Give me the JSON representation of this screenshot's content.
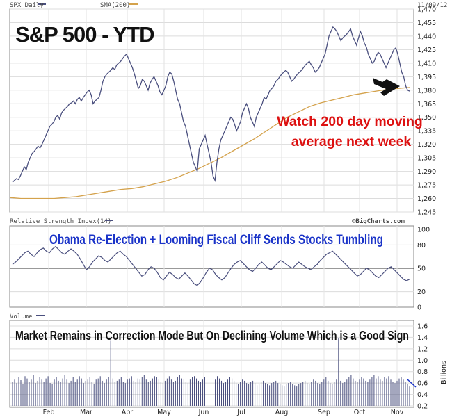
{
  "header": {
    "price_label": "SPX Daily",
    "sma_label": "SMA(200)",
    "date": "11/09/12"
  },
  "annotations": {
    "title": "S&P 500 - YTD",
    "watch_line1": "Watch 200 day moving",
    "watch_line2": "average next week",
    "rsi_headline": "Obama Re-Election + Looming Fiscal Cliff Sends Stocks Tumbling",
    "volume_headline": "Market Remains in Correction Mode But On Declining Volume Which is a Good Sign",
    "bigcharts": "©BigCharts.com"
  },
  "rsi_panel": {
    "label": "Relative Strength Index(14)"
  },
  "volume_panel": {
    "label": "Volume",
    "unit": "Billions"
  },
  "colors": {
    "price": "#4a4f7e",
    "sma": "#d4a24c",
    "annotation_red": "#dd1111",
    "headline_blue": "#1a33c8",
    "grid": "#d8d8d8",
    "border": "#888888",
    "arrow": "#111111"
  },
  "chart_data": [
    {
      "type": "line",
      "title": "S&P 500 - YTD",
      "ylim": [
        1245,
        1470
      ],
      "yticks": [
        1245,
        1260,
        1275,
        1290,
        1305,
        1320,
        1335,
        1350,
        1365,
        1380,
        1395,
        1410,
        1425,
        1440,
        1455,
        1470
      ],
      "x_labels": [
        "Feb",
        "Mar",
        "Apr",
        "May",
        "Jun",
        "Jul",
        "Aug",
        "Sep",
        "Oct",
        "Nov"
      ],
      "series": [
        {
          "name": "SPX Daily",
          "values": [
            1278,
            1280,
            1282,
            1281,
            1285,
            1290,
            1295,
            1292,
            1300,
            1305,
            1310,
            1312,
            1315,
            1318,
            1316,
            1320,
            1325,
            1330,
            1335,
            1340,
            1342,
            1345,
            1350,
            1352,
            1348,
            1355,
            1358,
            1360,
            1362,
            1365,
            1366,
            1368,
            1365,
            1370,
            1372,
            1368,
            1372,
            1375,
            1378,
            1380,
            1375,
            1365,
            1368,
            1370,
            1372,
            1380,
            1390,
            1395,
            1398,
            1400,
            1402,
            1405,
            1403,
            1408,
            1410,
            1412,
            1415,
            1418,
            1420,
            1415,
            1410,
            1405,
            1398,
            1390,
            1382,
            1385,
            1392,
            1390,
            1385,
            1380,
            1388,
            1392,
            1395,
            1390,
            1385,
            1378,
            1375,
            1380,
            1385,
            1395,
            1400,
            1398,
            1390,
            1380,
            1370,
            1365,
            1355,
            1345,
            1340,
            1330,
            1320,
            1310,
            1300,
            1295,
            1290,
            1315,
            1320,
            1325,
            1330,
            1320,
            1310,
            1300,
            1285,
            1280,
            1300,
            1315,
            1325,
            1330,
            1335,
            1340,
            1345,
            1350,
            1348,
            1342,
            1335,
            1340,
            1345,
            1355,
            1360,
            1365,
            1360,
            1350,
            1345,
            1340,
            1350,
            1355,
            1360,
            1365,
            1372,
            1370,
            1375,
            1380,
            1382,
            1385,
            1390,
            1392,
            1395,
            1398,
            1400,
            1402,
            1400,
            1395,
            1390,
            1392,
            1395,
            1398,
            1400,
            1402,
            1405,
            1408,
            1410,
            1412,
            1408,
            1405,
            1400,
            1402,
            1405,
            1410,
            1415,
            1420,
            1430,
            1440,
            1445,
            1450,
            1448,
            1445,
            1440,
            1435,
            1438,
            1440,
            1442,
            1445,
            1448,
            1440,
            1435,
            1430,
            1438,
            1445,
            1440,
            1432,
            1428,
            1420,
            1415,
            1410,
            1412,
            1418,
            1422,
            1420,
            1415,
            1410,
            1405,
            1410,
            1415,
            1420,
            1425,
            1427,
            1420,
            1410,
            1400,
            1395,
            1385,
            1380,
            1379
          ]
        },
        {
          "name": "SMA(200)",
          "values": [
            1261,
            1260,
            1260,
            1260,
            1260,
            1261,
            1262,
            1264,
            1266,
            1268,
            1270,
            1271,
            1273,
            1276,
            1279,
            1283,
            1288,
            1293,
            1299,
            1305,
            1312,
            1319,
            1326,
            1334,
            1342,
            1350,
            1356,
            1362,
            1366,
            1369,
            1372,
            1375,
            1377,
            1379,
            1381,
            1382,
            1383
          ]
        }
      ]
    },
    {
      "type": "line",
      "title": "Relative Strength Index(14)",
      "ylim": [
        0,
        100
      ],
      "yticks": [
        0,
        20,
        50,
        80,
        100
      ],
      "series": [
        {
          "name": "Relative Strength Index(14)",
          "values": [
            55,
            58,
            62,
            66,
            70,
            72,
            68,
            65,
            70,
            74,
            76,
            72,
            70,
            75,
            78,
            74,
            70,
            68,
            72,
            75,
            72,
            68,
            62,
            55,
            48,
            52,
            58,
            62,
            66,
            64,
            60,
            58,
            62,
            66,
            70,
            72,
            68,
            65,
            60,
            55,
            50,
            45,
            40,
            42,
            48,
            52,
            50,
            45,
            38,
            35,
            40,
            45,
            42,
            38,
            36,
            40,
            44,
            40,
            35,
            30,
            28,
            32,
            38,
            45,
            50,
            48,
            42,
            38,
            35,
            38,
            44,
            50,
            55,
            58,
            60,
            56,
            52,
            48,
            46,
            50,
            55,
            58,
            54,
            50,
            48,
            52,
            56,
            60,
            58,
            55,
            52,
            50,
            54,
            58,
            55,
            52,
            50,
            48,
            52,
            55,
            60,
            64,
            68,
            70,
            72,
            68,
            64,
            60,
            56,
            52,
            48,
            44,
            40,
            42,
            46,
            50,
            48,
            44,
            40,
            38,
            42,
            46,
            50,
            52,
            48,
            44,
            40,
            36,
            34,
            36
          ]
        }
      ]
    },
    {
      "type": "bar",
      "title": "Volume",
      "ylabel": "Billions",
      "ylim": [
        0.2,
        1.6
      ],
      "yticks": [
        0.2,
        0.4,
        0.6,
        0.8,
        1.0,
        1.2,
        1.4,
        1.6
      ],
      "series": [
        {
          "name": "Volume",
          "values": [
            0.62,
            0.66,
            0.6,
            0.7,
            0.65,
            0.58,
            0.72,
            0.68,
            0.62,
            0.66,
            0.74,
            0.6,
            0.64,
            0.7,
            0.66,
            0.62,
            0.68,
            0.72,
            0.6,
            0.58,
            0.66,
            0.7,
            0.64,
            0.62,
            0.68,
            0.74,
            0.66,
            0.6,
            0.64,
            0.7,
            0.62,
            0.66,
            0.72,
            0.68,
            0.6,
            0.64,
            0.66,
            0.7,
            0.62,
            0.58,
            0.66,
            0.68,
            0.72,
            0.64,
            0.6,
            0.66,
            0.7,
            1.35,
            0.68,
            0.62,
            0.64,
            0.66,
            0.7,
            0.62,
            0.6,
            0.66,
            0.68,
            0.72,
            0.64,
            0.62,
            0.68,
            0.66,
            0.7,
            0.74,
            0.66,
            0.62,
            0.64,
            0.68,
            0.72,
            0.7,
            0.66,
            0.62,
            0.6,
            0.64,
            0.68,
            0.72,
            0.66,
            0.62,
            0.64,
            0.7,
            0.74,
            0.68,
            0.66,
            0.62,
            0.6,
            0.66,
            0.7,
            0.72,
            0.68,
            0.64,
            0.62,
            0.66,
            0.7,
            0.74,
            0.68,
            0.64,
            0.62,
            0.66,
            0.72,
            0.68,
            0.64,
            0.6,
            0.62,
            0.66,
            0.7,
            0.68,
            0.64,
            0.6,
            0.58,
            0.62,
            0.66,
            0.64,
            0.6,
            0.58,
            0.62,
            0.64,
            0.6,
            0.56,
            0.58,
            0.62,
            0.64,
            0.6,
            0.58,
            0.56,
            0.6,
            0.62,
            0.64,
            0.6,
            0.58,
            0.56,
            0.54,
            0.58,
            0.6,
            0.62,
            0.58,
            0.56,
            0.54,
            0.58,
            0.6,
            0.62,
            0.64,
            0.6,
            0.58,
            0.62,
            0.66,
            0.64,
            0.6,
            0.58,
            0.62,
            0.66,
            0.7,
            0.64,
            0.6,
            0.58,
            0.62,
            0.66,
            1.38,
            0.64,
            0.6,
            0.62,
            0.66,
            0.7,
            0.74,
            0.68,
            0.64,
            0.62,
            0.66,
            0.7,
            0.68,
            0.64,
            0.62,
            0.66,
            0.7,
            0.74,
            0.68,
            0.72,
            0.66,
            0.64,
            0.7,
            0.68,
            0.72,
            0.66,
            0.62,
            0.6,
            0.64,
            0.68,
            0.7,
            0.66,
            0.62,
            0.58,
            0.54
          ]
        }
      ]
    }
  ]
}
